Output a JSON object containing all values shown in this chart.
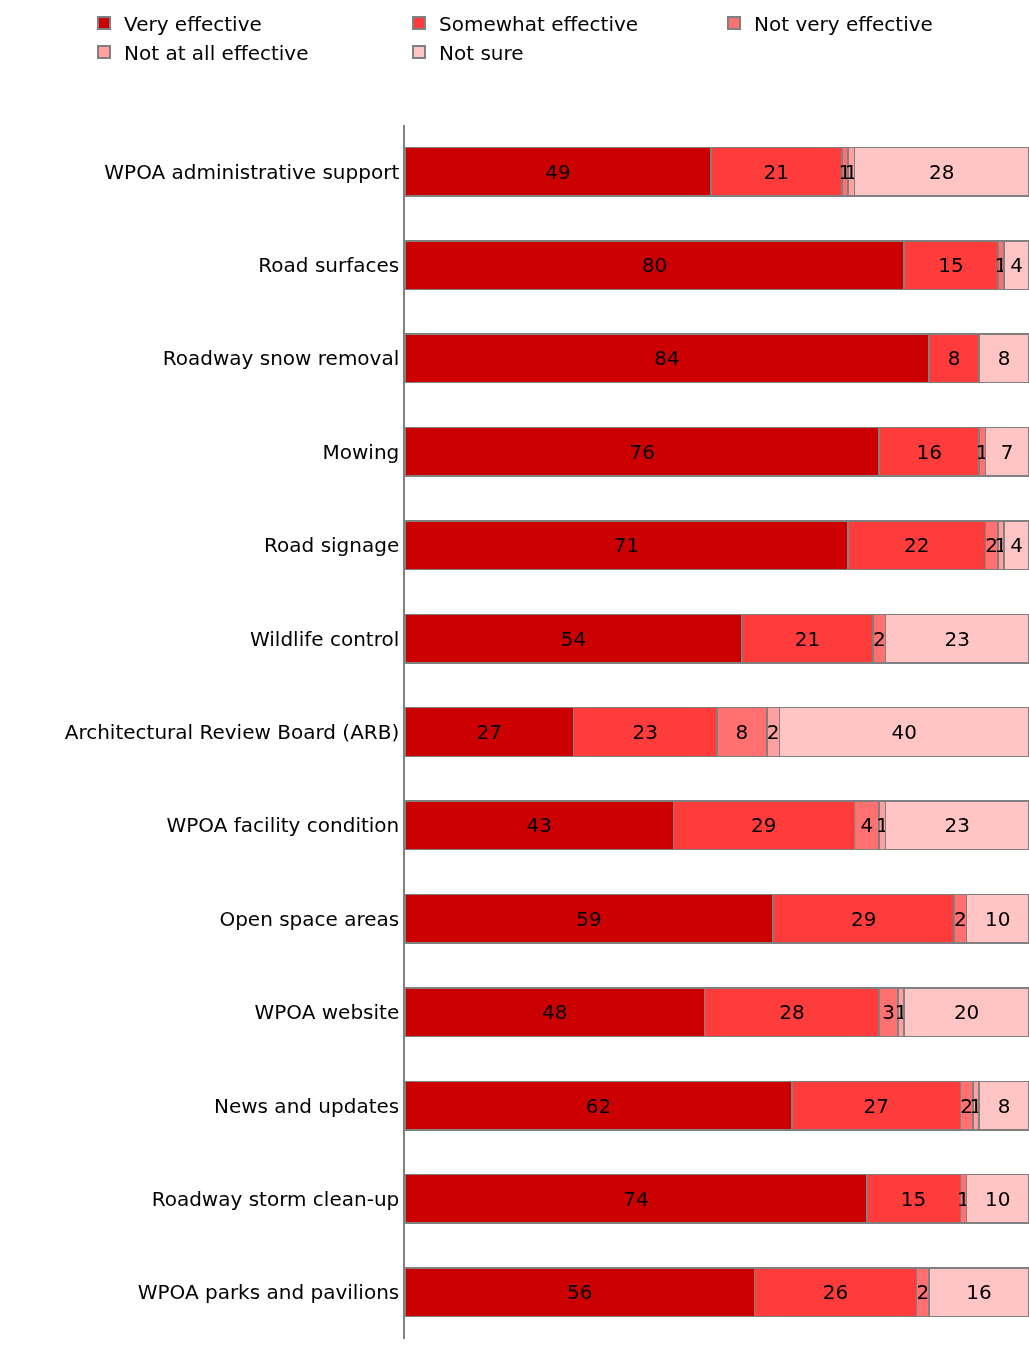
{
  "chart_data": {
    "type": "bar",
    "orientation": "horizontal",
    "stacked": true,
    "legend": "top",
    "tick_labels": "y",
    "xlim": [
      0,
      100
    ],
    "categories": [
      "WPOA administrative support",
      "Road surfaces",
      "Roadway snow removal",
      "Mowing",
      "Road signage",
      "Wildlife control",
      "Architectural Review Board (ARB)",
      "WPOA facility condition",
      "Open space areas",
      "WPOA website",
      "News and updates",
      "Roadway storm clean-up",
      "WPOA parks and pavilions"
    ],
    "series": [
      {
        "name": "Very effective",
        "color": "#cc0000",
        "values": [
          49,
          80,
          84,
          76,
          71,
          54,
          27,
          43,
          59,
          48,
          62,
          74,
          56
        ],
        "value_labels": [
          "49",
          "80",
          "84",
          "76",
          "71",
          "54",
          "27",
          "43",
          "59",
          "48",
          "62",
          "74",
          "56"
        ]
      },
      {
        "name": "Somewhat effective",
        "color": "#ff3c3c",
        "values": [
          21,
          15,
          8,
          16,
          22,
          21,
          23,
          29,
          29,
          28,
          27,
          15,
          26
        ],
        "value_labels": [
          "21",
          "15",
          "8",
          "16",
          "22",
          "21",
          "23",
          "29",
          "29",
          "28",
          "27",
          "15",
          "26"
        ]
      },
      {
        "name": "Not very effective",
        "color": "#ff7070",
        "values": [
          1,
          1,
          0,
          1,
          2,
          2,
          8,
          4,
          2,
          3,
          2,
          1,
          2
        ],
        "value_labels": [
          "1",
          "1",
          null,
          "1",
          "2",
          "2",
          "8",
          "4",
          "2",
          "3",
          "2",
          "1",
          "2"
        ]
      },
      {
        "name": "Not at all effective",
        "color": "#ffa0a0",
        "values": [
          1,
          0,
          0,
          0,
          1,
          0,
          2,
          1,
          0,
          1,
          1,
          0,
          0
        ],
        "value_labels": [
          "1",
          null,
          null,
          null,
          "1",
          null,
          "2",
          "1",
          null,
          "1",
          "1",
          null,
          null
        ]
      },
      {
        "name": "Not sure",
        "color": "#ffc4c4",
        "values": [
          28,
          4,
          8,
          7,
          4,
          23,
          40,
          23,
          10,
          20,
          8,
          10,
          16
        ],
        "value_labels": [
          "28",
          "4",
          "8",
          "7",
          "4",
          "23",
          "40",
          "23",
          "10",
          "20",
          "8",
          "10",
          "16"
        ]
      }
    ]
  }
}
